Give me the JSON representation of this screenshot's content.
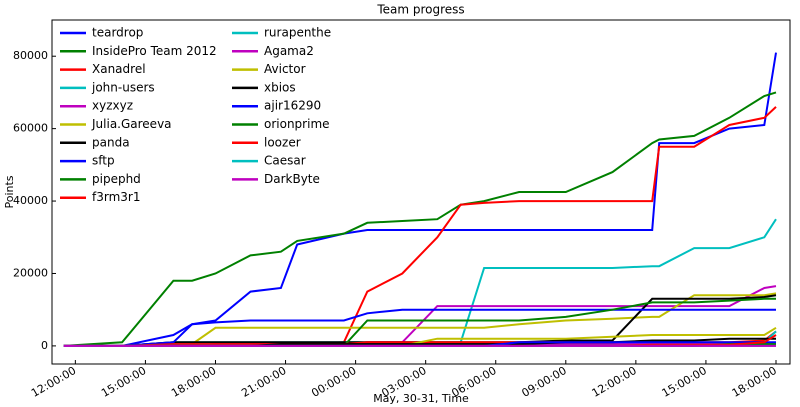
{
  "chart_data": {
    "type": "line",
    "title": "Team progress",
    "x_label": "May, 30-31, Time",
    "y_label": "Points",
    "x": [
      11.5,
      14,
      16.2,
      17,
      18,
      19.5,
      20.8,
      21.5,
      23.5,
      24.5,
      26,
      27.5,
      28.5,
      29.5,
      31,
      33,
      35,
      36.7,
      37,
      38.5,
      40,
      41.5,
      42
    ],
    "xlim": [
      11,
      42.6
    ],
    "xticks": [
      {
        "value": 12,
        "label": "12:00:00"
      },
      {
        "value": 15,
        "label": "15:00:00"
      },
      {
        "value": 18,
        "label": "18:00:00"
      },
      {
        "value": 21,
        "label": "21:00:00"
      },
      {
        "value": 24,
        "label": "00:00:00"
      },
      {
        "value": 27,
        "label": "03:00:00"
      },
      {
        "value": 30,
        "label": "06:00:00"
      },
      {
        "value": 33,
        "label": "09:00:00"
      },
      {
        "value": 36,
        "label": "12:00:00"
      },
      {
        "value": 39,
        "label": "15:00:00"
      },
      {
        "value": 42,
        "label": "18:00:00"
      }
    ],
    "ylim": [
      -5000,
      90000
    ],
    "yticks": [
      0,
      20000,
      40000,
      60000,
      80000
    ],
    "legend": "upper left",
    "series": [
      {
        "name": "teardrop",
        "color": "#0000ff",
        "values": [
          0,
          0,
          3000,
          6000,
          7000,
          15000,
          16000,
          28000,
          31000,
          32000,
          32000,
          32000,
          32000,
          32000,
          32000,
          32000,
          32000,
          32000,
          56000,
          56000,
          60000,
          61000,
          81000
        ]
      },
      {
        "name": "InsidePro Team 2012",
        "color": "#008000",
        "values": [
          0,
          1000,
          18000,
          18000,
          20000,
          25000,
          26000,
          29000,
          31000,
          34000,
          34500,
          35000,
          39000,
          40000,
          42500,
          42500,
          48000,
          56000,
          57000,
          58000,
          63000,
          69000,
          70000
        ]
      },
      {
        "name": "Xanadrel",
        "color": "#ff0000",
        "values": [
          0,
          0,
          0,
          0,
          500,
          500,
          500,
          500,
          1000,
          15000,
          20000,
          30000,
          39000,
          39500,
          40000,
          40000,
          40000,
          40000,
          55000,
          55000,
          61000,
          63000,
          66000
        ]
      },
      {
        "name": " john-users",
        "color": "#00bfbf",
        "values": [
          0,
          0,
          1000,
          1000,
          1000,
          1000,
          1000,
          1000,
          1000,
          1000,
          1000,
          1000,
          1000,
          21500,
          21500,
          21500,
          21500,
          22000,
          22000,
          27000,
          27000,
          30000,
          35000
        ]
      },
      {
        "name": "xyzxyz",
        "color": "#bf00bf",
        "values": [
          0,
          0,
          0,
          0,
          500,
          500,
          500,
          500,
          500,
          1000,
          1000,
          11000,
          11000,
          11000,
          11000,
          11000,
          11000,
          11000,
          11000,
          11000,
          11000,
          16000,
          16500
        ]
      },
      {
        "name": "Julia.Gareeva",
        "color": "#bfbf00",
        "values": [
          0,
          0,
          0,
          500,
          5000,
          5000,
          5000,
          5000,
          5000,
          5000,
          5000,
          5000,
          5000,
          5000,
          6000,
          7000,
          7500,
          8000,
          8000,
          14000,
          14000,
          14000,
          14500
        ]
      },
      {
        "name": "panda",
        "color": "#000000",
        "values": [
          0,
          0,
          1000,
          1000,
          1000,
          1000,
          1000,
          1000,
          1000,
          1000,
          1000,
          1000,
          1000,
          1000,
          1000,
          1500,
          1500,
          13000,
          13000,
          13000,
          13000,
          13500,
          14000
        ]
      },
      {
        "name": "sftp",
        "color": "#0000ff",
        "values": [
          0,
          0,
          1000,
          6000,
          6500,
          7000,
          7000,
          7000,
          7000,
          9000,
          10000,
          10000,
          10000,
          10000,
          10000,
          10000,
          10000,
          10000,
          10000,
          10000,
          10000,
          10000,
          10000
        ]
      },
      {
        "name": "pipephd",
        "color": "#008000",
        "values": [
          0,
          0,
          0,
          0,
          0,
          0,
          0,
          0,
          0,
          7000,
          7000,
          7000,
          7000,
          7000,
          7000,
          8000,
          10000,
          12000,
          12000,
          12000,
          12500,
          13000,
          13000
        ]
      },
      {
        "name": "f3rm3r1",
        "color": "#ff0000",
        "values": [
          0,
          0,
          500,
          500,
          500,
          500,
          500,
          500,
          500,
          1000,
          1000,
          1000,
          1000,
          1000,
          1000,
          1000,
          1000,
          1000,
          1000,
          1000,
          1000,
          1500,
          4000
        ]
      },
      {
        "name": "rurapenthe",
        "color": "#00bfbf",
        "values": [
          0,
          0,
          0,
          0,
          0,
          0,
          0,
          0,
          0,
          0,
          0,
          0,
          0,
          0,
          0,
          0,
          0,
          0,
          0,
          0,
          500,
          1000,
          4000
        ]
      },
      {
        "name": "Agama2",
        "color": "#bf00bf",
        "values": [
          0,
          0,
          0,
          0,
          0,
          0,
          0,
          0,
          0,
          0,
          0,
          0,
          0,
          500,
          500,
          500,
          500,
          500,
          500,
          500,
          500,
          500,
          500
        ]
      },
      {
        "name": "Avictor",
        "color": "#bfbf00",
        "values": [
          0,
          0,
          0,
          0,
          0,
          0,
          0,
          0,
          0,
          0,
          0,
          2000,
          2000,
          2000,
          2000,
          2000,
          2500,
          3000,
          3000,
          3000,
          3000,
          3000,
          5000
        ]
      },
      {
        "name": "xbios",
        "color": "#000000",
        "values": [
          0,
          0,
          0,
          0,
          0,
          0,
          500,
          500,
          500,
          500,
          500,
          500,
          500,
          500,
          500,
          1000,
          1000,
          1500,
          1500,
          1500,
          2000,
          2000,
          2000
        ]
      },
      {
        "name": "ajir16290",
        "color": "#0000ff",
        "values": [
          0,
          0,
          0,
          0,
          0,
          0,
          0,
          0,
          0,
          0,
          0,
          0,
          0,
          0,
          1000,
          1000,
          1000,
          1000,
          1000,
          1000,
          1000,
          1000,
          1000
        ]
      },
      {
        "name": "orionprime",
        "color": "#008000",
        "values": [
          0,
          0,
          0,
          0,
          0,
          0,
          0,
          0,
          0,
          0,
          0,
          0,
          0,
          0,
          0,
          0,
          0,
          0,
          0,
          0,
          500,
          500,
          500
        ]
      },
      {
        "name": "loozer",
        "color": "#ff0000",
        "values": [
          0,
          0,
          0,
          0,
          0,
          0,
          0,
          0,
          0,
          0,
          0,
          0,
          0,
          0,
          0,
          0,
          0,
          300,
          300,
          300,
          300,
          1000,
          3000
        ]
      },
      {
        "name": "Caesar",
        "color": "#00bfbf",
        "values": [
          0,
          0,
          0,
          0,
          0,
          0,
          0,
          0,
          0,
          0,
          0,
          0,
          0,
          0,
          0,
          0,
          0,
          0,
          0,
          0,
          0,
          0,
          0
        ]
      },
      {
        "name": "DarkByte",
        "color": "#bf00bf",
        "values": [
          0,
          0,
          0,
          0,
          0,
          0,
          0,
          0,
          0,
          0,
          0,
          0,
          0,
          0,
          0,
          0,
          0,
          0,
          0,
          0,
          0,
          0,
          0
        ]
      }
    ]
  }
}
